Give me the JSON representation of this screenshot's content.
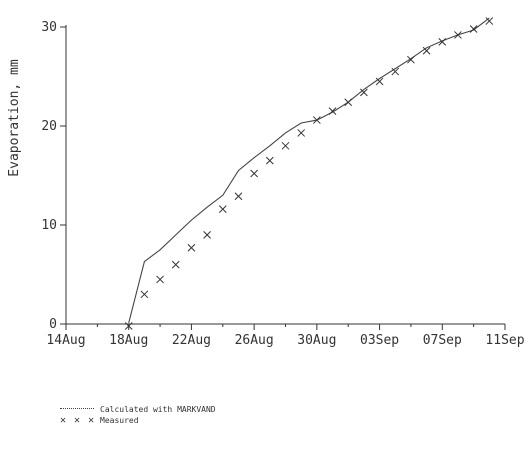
{
  "chart_data": {
    "type": "line",
    "title": "",
    "xlabel": "",
    "ylabel": "Evaporation, mm",
    "ylim": [
      0,
      30
    ],
    "xlim": [
      "14Aug",
      "11Sep"
    ],
    "x_ticks": [
      "14Aug",
      "18Aug",
      "22Aug",
      "26Aug",
      "30Aug",
      "03Sep",
      "07Sep",
      "11Sep"
    ],
    "y_ticks": [
      "0",
      "10",
      "20",
      "30"
    ],
    "grid": false,
    "legend_position": "bottom-left",
    "series": [
      {
        "name": "Calculated with MARKVAND",
        "style": "line",
        "x": [
          "18Aug",
          "19Aug",
          "20Aug",
          "21Aug",
          "22Aug",
          "23Aug",
          "24Aug",
          "25Aug",
          "26Aug",
          "27Aug",
          "28Aug",
          "29Aug",
          "30Aug",
          "31Aug",
          "01Sep",
          "02Sep",
          "03Sep",
          "04Sep",
          "05Sep",
          "06Sep",
          "07Sep",
          "08Sep",
          "09Sep",
          "10Sep"
        ],
        "values": [
          0.1,
          6.3,
          7.5,
          9.0,
          10.5,
          11.8,
          13.0,
          15.5,
          16.8,
          18.0,
          19.3,
          20.3,
          20.6,
          21.4,
          22.4,
          23.7,
          24.8,
          25.8,
          26.8,
          27.9,
          28.6,
          29.2,
          29.7,
          30.9
        ]
      },
      {
        "name": "Measured",
        "style": "x-markers",
        "x": [
          "18Aug",
          "19Aug",
          "20Aug",
          "21Aug",
          "22Aug",
          "23Aug",
          "24Aug",
          "25Aug",
          "26Aug",
          "27Aug",
          "28Aug",
          "29Aug",
          "30Aug",
          "31Aug",
          "01Sep",
          "02Sep",
          "03Sep",
          "04Sep",
          "05Sep",
          "06Sep",
          "07Sep",
          "08Sep",
          "09Sep",
          "10Sep"
        ],
        "values": [
          -0.2,
          3.0,
          4.5,
          6.0,
          7.7,
          9.0,
          11.6,
          12.9,
          15.2,
          16.5,
          18.0,
          19.3,
          20.6,
          21.5,
          22.4,
          23.4,
          24.5,
          25.5,
          26.7,
          27.6,
          28.5,
          29.2,
          29.8,
          30.6
        ]
      }
    ],
    "legend": {
      "calculated_swatch": "·······",
      "calculated_label": "Calculated with MARKVAND",
      "measured_swatch": "✕ ✕ ✕",
      "measured_label": "Measured"
    },
    "colors": {
      "ink": "#333333",
      "background": "#ffffff"
    }
  }
}
